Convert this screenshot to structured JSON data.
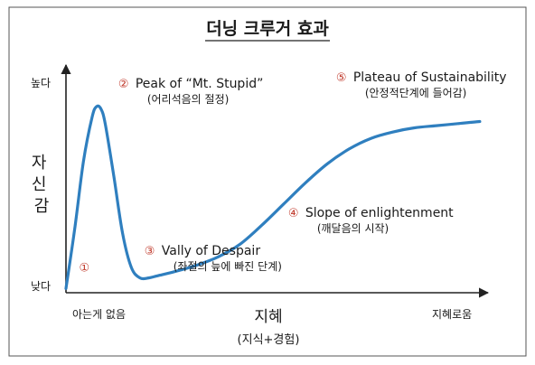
{
  "chart_data": {
    "type": "line",
    "title": "더닝 크루거 효과",
    "xlabel": "지혜",
    "xlabel_sub": "(지식+경험)",
    "ylabel": "자신감",
    "x_ticks": [
      "아는게 없음",
      "지혜로움"
    ],
    "y_ticks": [
      "낮다",
      "높다"
    ],
    "xlim": [
      0,
      1
    ],
    "ylim": [
      0,
      1
    ],
    "grid": false,
    "series": [
      {
        "x": [
          0.0,
          0.02,
          0.04,
          0.06,
          0.07,
          0.08,
          0.09,
          0.11,
          0.13,
          0.15,
          0.17,
          0.19,
          0.21,
          0.25,
          0.3,
          0.35,
          0.4,
          0.45,
          0.5,
          0.55,
          0.6,
          0.65,
          0.7,
          0.75,
          0.8,
          0.85,
          0.9,
          0.95
        ],
        "y": [
          0.02,
          0.3,
          0.62,
          0.83,
          0.88,
          0.87,
          0.8,
          0.55,
          0.28,
          0.12,
          0.07,
          0.07,
          0.08,
          0.1,
          0.13,
          0.17,
          0.23,
          0.32,
          0.42,
          0.52,
          0.61,
          0.68,
          0.73,
          0.76,
          0.78,
          0.79,
          0.8,
          0.81
        ]
      }
    ],
    "annotations": [
      {
        "num": "①",
        "label": "",
        "sub": "",
        "x": 0.03,
        "y": 0.1
      },
      {
        "num": "②",
        "label": "Peak of “Mt. Stupid”",
        "sub": "(어리석음의 절정)",
        "x": 0.12,
        "y": 0.97
      },
      {
        "num": "③",
        "label": "Vally of Despair",
        "sub": "(좌절의 늪에 빠진 단계)",
        "x": 0.18,
        "y": 0.18
      },
      {
        "num": "④",
        "label": "Slope of enlightenment",
        "sub": "(깨달음의 시작)",
        "x": 0.51,
        "y": 0.36
      },
      {
        "num": "⑤",
        "label": "Plateau of Sustainability",
        "sub": "(안정적단계에 들어감)",
        "x": 0.62,
        "y": 1.0
      }
    ]
  }
}
